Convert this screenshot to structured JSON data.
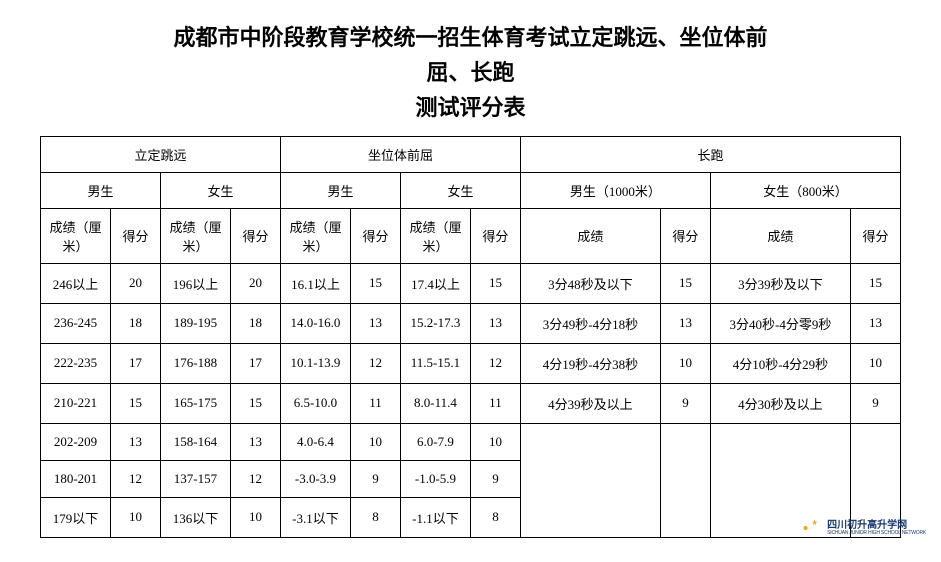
{
  "title": {
    "line1": "成都市中阶段教育学校统一招生体育考试立定跳远、坐位体前",
    "line2": "屈、长跑",
    "line3": "测试评分表"
  },
  "table": {
    "group_headers": [
      "立定跳远",
      "坐位体前屈",
      "长跑"
    ],
    "sub_headers": {
      "jump_male": "男生",
      "jump_female": "女生",
      "sit_male": "男生",
      "sit_female": "女生",
      "run_male": "男生（1000米）",
      "run_female": "女生（800米）"
    },
    "col_headers": {
      "score_cm": "成绩（厘米）",
      "points": "得分",
      "score": "成绩"
    },
    "rows": [
      {
        "jm_s": "246以上",
        "jm_p": "20",
        "jf_s": "196以上",
        "jf_p": "20",
        "sm_s": "16.1以上",
        "sm_p": "15",
        "sf_s": "17.4以上",
        "sf_p": "15",
        "rm_s": "3分48秒及以下",
        "rm_p": "15",
        "rf_s": "3分39秒及以下",
        "rf_p": "15"
      },
      {
        "jm_s": "236-245",
        "jm_p": "18",
        "jf_s": "189-195",
        "jf_p": "18",
        "sm_s": "14.0-16.0",
        "sm_p": "13",
        "sf_s": "15.2-17.3",
        "sf_p": "13",
        "rm_s": "3分49秒-4分18秒",
        "rm_p": "13",
        "rf_s": "3分40秒-4分零9秒",
        "rf_p": "13"
      },
      {
        "jm_s": "222-235",
        "jm_p": "17",
        "jf_s": "176-188",
        "jf_p": "17",
        "sm_s": "10.1-13.9",
        "sm_p": "12",
        "sf_s": "11.5-15.1",
        "sf_p": "12",
        "rm_s": "4分19秒-4分38秒",
        "rm_p": "10",
        "rf_s": "4分10秒-4分29秒",
        "rf_p": "10"
      },
      {
        "jm_s": "210-221",
        "jm_p": "15",
        "jf_s": "165-175",
        "jf_p": "15",
        "sm_s": "6.5-10.0",
        "sm_p": "11",
        "sf_s": "8.0-11.4",
        "sf_p": "11",
        "rm_s": "4分39秒及以上",
        "rm_p": "9",
        "rf_s": "4分30秒及以上",
        "rf_p": "9"
      },
      {
        "jm_s": "202-209",
        "jm_p": "13",
        "jf_s": "158-164",
        "jf_p": "13",
        "sm_s": "4.0-6.4",
        "sm_p": "10",
        "sf_s": "6.0-7.9",
        "sf_p": "10",
        "rm_s": "",
        "rm_p": "",
        "rf_s": "",
        "rf_p": ""
      },
      {
        "jm_s": "180-201",
        "jm_p": "12",
        "jf_s": "137-157",
        "jf_p": "12",
        "sm_s": "-3.0-3.9",
        "sm_p": "9",
        "sf_s": "-1.0-5.9",
        "sf_p": "9",
        "rm_s": "",
        "rm_p": "",
        "rf_s": "",
        "rf_p": ""
      },
      {
        "jm_s": "179以下",
        "jm_p": "10",
        "jf_s": "136以下",
        "jf_p": "10",
        "sm_s": "-3.1以下",
        "sm_p": "8",
        "sf_s": "-1.1以下",
        "sf_p": "8",
        "rm_s": "",
        "rm_p": "",
        "rf_s": "",
        "rf_p": ""
      }
    ],
    "run_rowspan": 4,
    "col_widths": {
      "jump_score": "7%",
      "jump_points": "5%",
      "sit_score": "7%",
      "sit_points": "5%",
      "run_score": "14%",
      "run_points": "5%"
    }
  },
  "logo": {
    "cn": "四川初升高升学网",
    "en": "SICHUAN JUNIOR HIGH SCHOOL NETWORK",
    "colors": {
      "primary": "#1a3a6e",
      "accent": "#f5a623"
    }
  },
  "colors": {
    "text": "#000000",
    "border": "#000000",
    "background": "#ffffff"
  }
}
